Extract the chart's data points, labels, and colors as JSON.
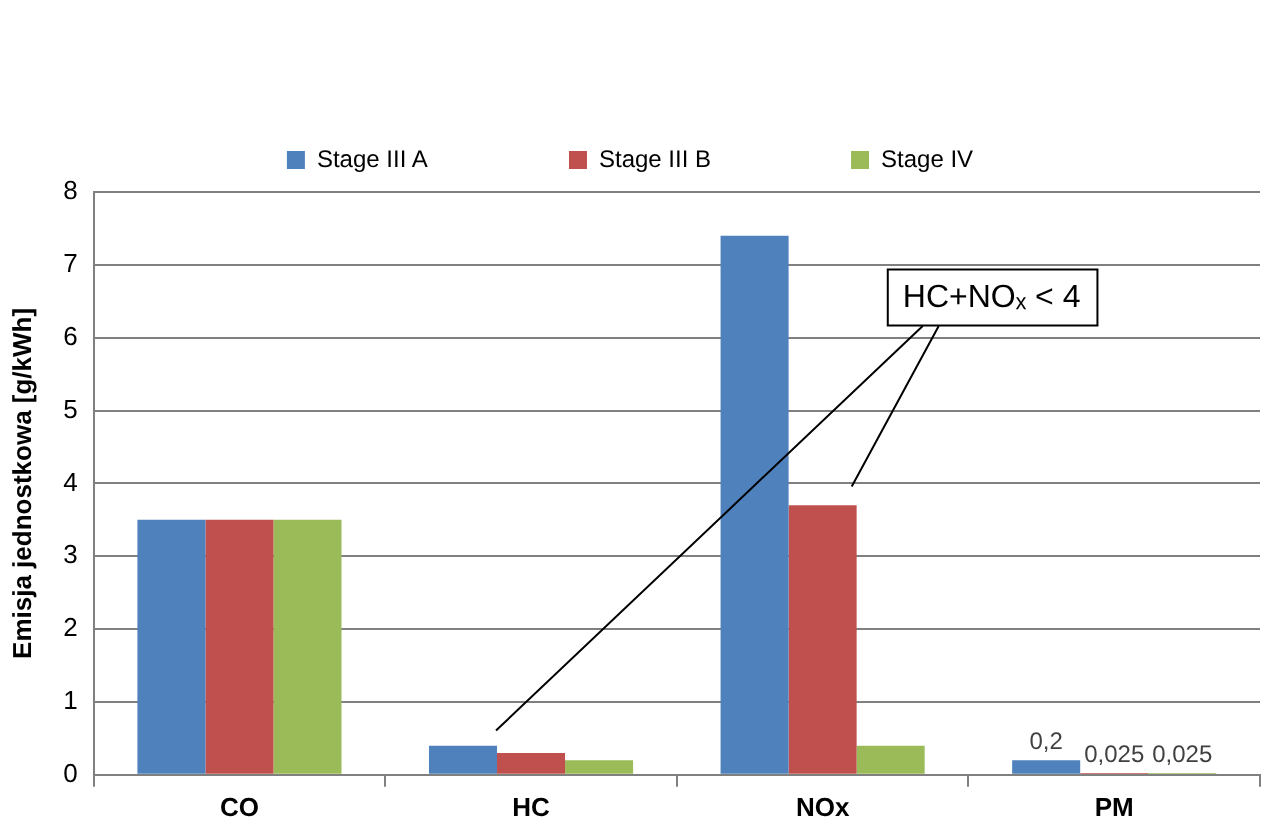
{
  "chart_data": {
    "type": "bar",
    "ylabel": "Emisja jednostkowa [g/kWh]",
    "categories": [
      "CO",
      "HC",
      "NOx",
      "PM"
    ],
    "series": [
      {
        "name": "Stage III A",
        "color": "#4f81bd",
        "values": [
          3.5,
          0.4,
          7.4,
          0.2
        ],
        "value_labels": [
          null,
          null,
          null,
          "0,2"
        ]
      },
      {
        "name": "Stage III B",
        "color": "#c0504d",
        "values": [
          3.5,
          0.3,
          3.7,
          0.025
        ],
        "value_labels": [
          null,
          null,
          null,
          "0,025"
        ]
      },
      {
        "name": "Stage IV",
        "color": "#9bbb59",
        "values": [
          3.5,
          0.2,
          0.4,
          0.025
        ],
        "value_labels": [
          null,
          null,
          null,
          "0,025"
        ]
      }
    ],
    "annotations": [
      "HC+NOₓ < 4"
    ],
    "ylim": [
      0,
      8
    ],
    "yticks": [
      0,
      1,
      2,
      3,
      4,
      5,
      6,
      7,
      8
    ],
    "grid": "y",
    "legend": "top"
  }
}
